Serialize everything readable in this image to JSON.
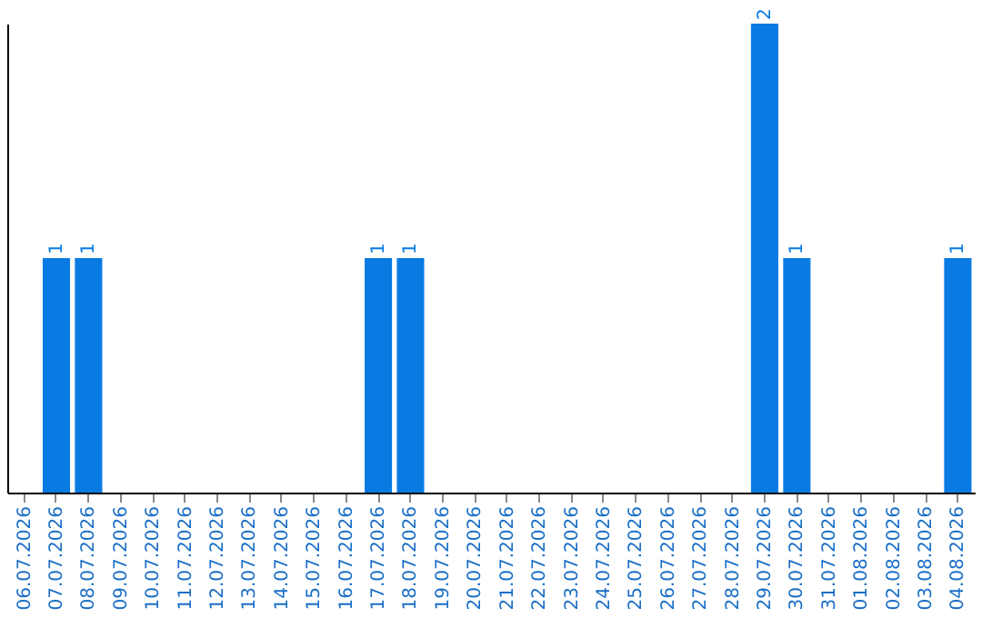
{
  "chart_data": {
    "type": "bar",
    "categories": [
      "06.07.2026",
      "07.07.2026",
      "08.07.2026",
      "09.07.2026",
      "10.07.2026",
      "11.07.2026",
      "12.07.2026",
      "13.07.2026",
      "14.07.2026",
      "15.07.2026",
      "16.07.2026",
      "17.07.2026",
      "18.07.2026",
      "19.07.2026",
      "20.07.2026",
      "21.07.2026",
      "22.07.2026",
      "23.07.2026",
      "24.07.2026",
      "25.07.2026",
      "26.07.2026",
      "27.07.2026",
      "28.07.2026",
      "29.07.2026",
      "30.07.2026",
      "31.07.2026",
      "01.08.2026",
      "02.08.2026",
      "03.08.2026",
      "04.08.2026"
    ],
    "values": [
      0,
      1,
      1,
      0,
      0,
      0,
      0,
      0,
      0,
      0,
      0,
      1,
      1,
      0,
      0,
      0,
      0,
      0,
      0,
      0,
      0,
      0,
      0,
      2,
      1,
      0,
      0,
      0,
      0,
      1
    ],
    "value_labels": [
      null,
      "1",
      "1",
      null,
      null,
      null,
      null,
      null,
      null,
      null,
      null,
      "1",
      "1",
      null,
      null,
      null,
      null,
      null,
      null,
      null,
      null,
      null,
      null,
      "2",
      "1",
      null,
      null,
      null,
      null,
      "1"
    ],
    "color": "#0a7ae3",
    "ylim": [
      0,
      2
    ],
    "tick_labels": "x",
    "grid": false
  }
}
